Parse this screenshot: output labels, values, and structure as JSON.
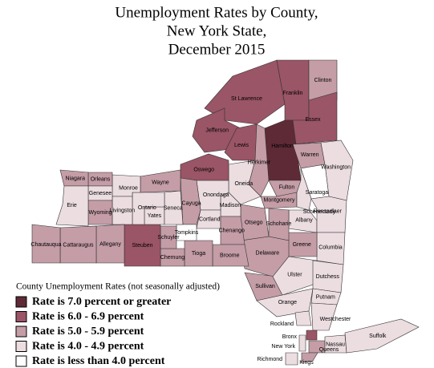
{
  "title": [
    "Unemployment Rates by County,",
    "New York State,",
    "December 2015"
  ],
  "legend": {
    "title": "County Unemployment Rates (not seasonally adjusted)",
    "items": [
      {
        "label": "Rate is 7.0 percent or greater",
        "color": "#5e2a36"
      },
      {
        "label": "Rate is 6.0 - 6.9 percent",
        "color": "#9a5566"
      },
      {
        "label": "Rate is 5.0 - 5.9 percent",
        "color": "#c49da7"
      },
      {
        "label": "Rate is 4.0 - 4.9 percent",
        "color": "#ecdde1"
      },
      {
        "label": "Rate is less than 4.0 percent",
        "color": "#ffffff"
      }
    ]
  },
  "counties": [
    {
      "name": "St Lawrence",
      "category": 1
    },
    {
      "name": "Franklin",
      "category": 1
    },
    {
      "name": "Clinton",
      "category": 2
    },
    {
      "name": "Essex",
      "category": 1
    },
    {
      "name": "Jefferson",
      "category": 1
    },
    {
      "name": "Lewis",
      "category": 1
    },
    {
      "name": "Hamilton",
      "category": 0
    },
    {
      "name": "Herkimer",
      "category": 2
    },
    {
      "name": "Warren",
      "category": 2
    },
    {
      "name": "Washington",
      "category": 3
    },
    {
      "name": "Saratoga",
      "category": 4
    },
    {
      "name": "Fulton",
      "category": 2
    },
    {
      "name": "Montgomery",
      "category": 2
    },
    {
      "name": "Schenectady",
      "category": 3
    },
    {
      "name": "Albany",
      "category": 3
    },
    {
      "name": "Rensselaer",
      "category": 3
    },
    {
      "name": "Columbia",
      "category": 3
    },
    {
      "name": "Greene",
      "category": 2
    },
    {
      "name": "Schoharie",
      "category": 2
    },
    {
      "name": "Delaware",
      "category": 2
    },
    {
      "name": "Otsego",
      "category": 2
    },
    {
      "name": "Oneida",
      "category": 3
    },
    {
      "name": "Madison",
      "category": 3
    },
    {
      "name": "Onondaga",
      "category": 3
    },
    {
      "name": "Oswego",
      "category": 1
    },
    {
      "name": "Cayuga",
      "category": 2
    },
    {
      "name": "Cortland",
      "category": 3
    },
    {
      "name": "Chenango",
      "category": 2
    },
    {
      "name": "Broome",
      "category": 2
    },
    {
      "name": "Tioga",
      "category": 2
    },
    {
      "name": "Tompkins",
      "category": 4
    },
    {
      "name": "Chemung",
      "category": 2
    },
    {
      "name": "Schuyler",
      "category": 2
    },
    {
      "name": "Steuben",
      "category": 1
    },
    {
      "name": "Yates",
      "category": 3
    },
    {
      "name": "Seneca",
      "category": 3
    },
    {
      "name": "Ontario",
      "category": 3
    },
    {
      "name": "Wayne",
      "category": 2
    },
    {
      "name": "Monroe",
      "category": 3
    },
    {
      "name": "Livingston",
      "category": 3
    },
    {
      "name": "Orleans",
      "category": 2
    },
    {
      "name": "Genesee",
      "category": 3
    },
    {
      "name": "Niagara",
      "category": 2
    },
    {
      "name": "Wyoming",
      "category": 2
    },
    {
      "name": "Erie",
      "category": 3
    },
    {
      "name": "Allegany",
      "category": 2
    },
    {
      "name": "Cattaraugus",
      "category": 2
    },
    {
      "name": "Chautauqua",
      "category": 2
    },
    {
      "name": "Sullivan",
      "category": 2
    },
    {
      "name": "Ulster",
      "category": 3
    },
    {
      "name": "Dutchess",
      "category": 3
    },
    {
      "name": "Orange",
      "category": 3
    },
    {
      "name": "Putnam",
      "category": 3
    },
    {
      "name": "Rockland",
      "category": 3
    },
    {
      "name": "Westchester",
      "category": 3
    },
    {
      "name": "Bronx",
      "category": 1
    },
    {
      "name": "New York",
      "category": 3
    },
    {
      "name": "Queens",
      "category": 2
    },
    {
      "name": "Kings",
      "category": 2
    },
    {
      "name": "Richmond",
      "category": 3
    },
    {
      "name": "Nassau",
      "category": 3
    },
    {
      "name": "Suffolk",
      "category": 3
    }
  ]
}
